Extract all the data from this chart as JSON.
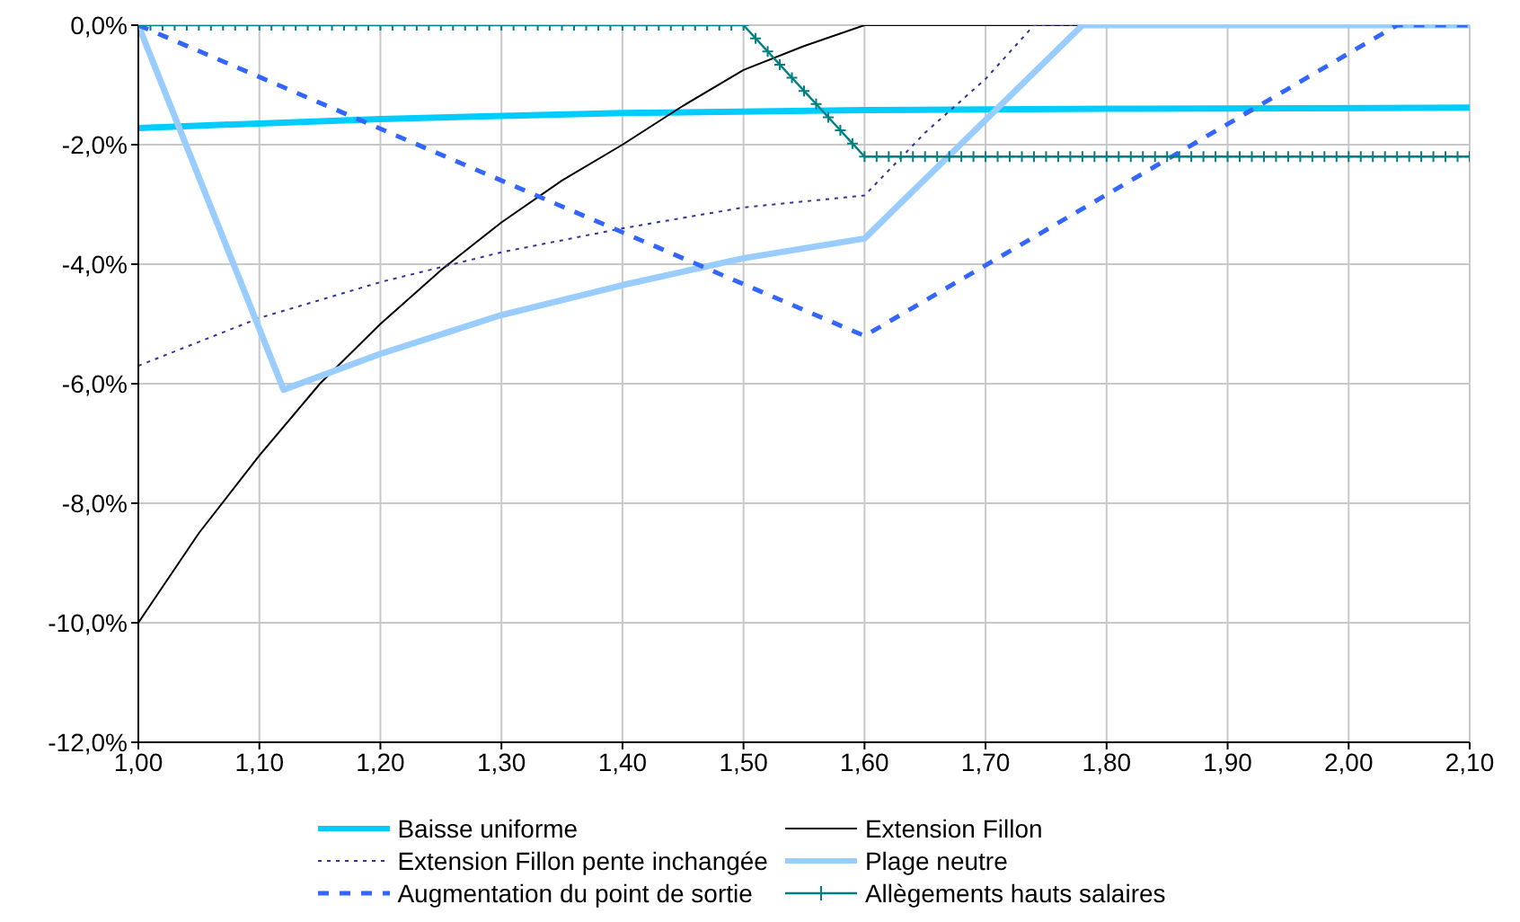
{
  "chart_data": {
    "type": "line",
    "grid": true,
    "legend": "bottom",
    "xlim": [
      1.0,
      2.1
    ],
    "xticks": [
      {
        "value": 1.0,
        "label": "1,00"
      },
      {
        "value": 1.1,
        "label": "1,10"
      },
      {
        "value": 1.2,
        "label": "1,20"
      },
      {
        "value": 1.3,
        "label": "1,30"
      },
      {
        "value": 1.4,
        "label": "1,40"
      },
      {
        "value": 1.5,
        "label": "1,50"
      },
      {
        "value": 1.6,
        "label": "1,60"
      },
      {
        "value": 1.7,
        "label": "1,70"
      },
      {
        "value": 1.8,
        "label": "1,80"
      },
      {
        "value": 1.9,
        "label": "1,90"
      },
      {
        "value": 2.0,
        "label": "2,00"
      },
      {
        "value": 2.1,
        "label": "2,10"
      }
    ],
    "ylim": [
      -12,
      0
    ],
    "yticks": [
      {
        "value": -12,
        "label": "-12,0%"
      },
      {
        "value": -10,
        "label": "-10,0%"
      },
      {
        "value": -8,
        "label": "-8,0%"
      },
      {
        "value": -6,
        "label": "-6,0%"
      },
      {
        "value": -4,
        "label": "-4,0%"
      },
      {
        "value": -2,
        "label": "-2,0%"
      },
      {
        "value": 0,
        "label": "0,0%"
      }
    ],
    "series": [
      {
        "name": "Baisse uniforme",
        "color": "#00ccff",
        "line_style": "solid",
        "marker": "none",
        "x": [
          1.0,
          1.2,
          1.4,
          1.6,
          1.8,
          2.1
        ],
        "values": [
          -1.72,
          -1.57,
          -1.47,
          -1.42,
          -1.4,
          -1.38
        ]
      },
      {
        "name": "Extension Fillon",
        "color": "#000000",
        "line_style": "solid",
        "marker": "none",
        "x": [
          1.0,
          1.05,
          1.1,
          1.15,
          1.2,
          1.25,
          1.3,
          1.35,
          1.4,
          1.45,
          1.5,
          1.55,
          1.6,
          2.1
        ],
        "values": [
          -10,
          -8.5,
          -7.2,
          -6.0,
          -5.0,
          -4.1,
          -3.3,
          -2.6,
          -2.0,
          -1.35,
          -0.75,
          -0.35,
          0,
          0
        ]
      },
      {
        "name": "Extension Fillon pente inchangée",
        "color": "#333399",
        "line_style": "dotted",
        "marker": "none",
        "x": [
          1.0,
          1.1,
          1.2,
          1.3,
          1.4,
          1.5,
          1.6,
          1.65,
          1.7,
          1.74,
          2.1
        ],
        "values": [
          -5.7,
          -4.9,
          -4.3,
          -3.8,
          -3.4,
          -3.05,
          -2.85,
          -1.8,
          -0.9,
          0,
          0
        ]
      },
      {
        "name": "Plage neutre",
        "color": "#99ccff",
        "line_style": "solid",
        "marker": "none",
        "x": [
          1.0,
          1.12,
          1.2,
          1.3,
          1.4,
          1.5,
          1.6,
          1.78,
          2.1
        ],
        "values": [
          0,
          -6.1,
          -5.5,
          -4.85,
          -4.35,
          -3.9,
          -3.57,
          0,
          0
        ]
      },
      {
        "name": "Augmentation du point de sortie",
        "color": "#3366ff",
        "line_style": "dashed",
        "marker": "none",
        "x": [
          1.0,
          1.6,
          2.04,
          2.1
        ],
        "values": [
          0,
          -5.2,
          0,
          0
        ]
      },
      {
        "name": "Allègements hauts salaires",
        "color": "#008080",
        "line_style": "solid",
        "marker": "cross",
        "x": [
          1.0,
          1.01,
          1.02,
          1.03,
          1.04,
          1.05,
          1.06,
          1.07,
          1.08,
          1.09,
          1.1,
          1.11,
          1.12,
          1.13,
          1.14,
          1.15,
          1.16,
          1.17,
          1.18,
          1.19,
          1.2,
          1.21,
          1.22,
          1.23,
          1.24,
          1.25,
          1.26,
          1.27,
          1.28,
          1.29,
          1.3,
          1.31,
          1.32,
          1.33,
          1.34,
          1.35,
          1.36,
          1.37,
          1.38,
          1.39,
          1.4,
          1.41,
          1.42,
          1.43,
          1.44,
          1.45,
          1.46,
          1.47,
          1.48,
          1.49,
          1.5,
          1.51,
          1.52,
          1.53,
          1.54,
          1.55,
          1.56,
          1.57,
          1.58,
          1.59,
          1.6,
          1.61,
          1.62,
          1.63,
          1.64,
          1.65,
          1.66,
          1.67,
          1.68,
          1.69,
          1.7,
          1.71,
          1.72,
          1.73,
          1.74,
          1.75,
          1.76,
          1.77,
          1.78,
          1.79,
          1.8,
          1.81,
          1.82,
          1.83,
          1.84,
          1.85,
          1.86,
          1.87,
          1.88,
          1.89,
          1.9,
          1.91,
          1.92,
          1.93,
          1.94,
          1.95,
          1.96,
          1.97,
          1.98,
          1.99,
          2.0,
          2.01,
          2.02,
          2.03,
          2.04,
          2.05,
          2.06,
          2.07,
          2.08,
          2.09,
          2.1
        ],
        "values": [
          0,
          0,
          0,
          0,
          0,
          0,
          0,
          0,
          0,
          0,
          0,
          0,
          0,
          0,
          0,
          0,
          0,
          0,
          0,
          0,
          0,
          0,
          0,
          0,
          0,
          0,
          0,
          0,
          0,
          0,
          0,
          0,
          0,
          0,
          0,
          0,
          0,
          0,
          0,
          0,
          0,
          0,
          0,
          0,
          0,
          0,
          0,
          0,
          0,
          0,
          0,
          -0.22,
          -0.44,
          -0.66,
          -0.88,
          -1.1,
          -1.32,
          -1.54,
          -1.76,
          -1.98,
          -2.2,
          -2.2,
          -2.2,
          -2.2,
          -2.2,
          -2.2,
          -2.2,
          -2.2,
          -2.2,
          -2.2,
          -2.2,
          -2.2,
          -2.2,
          -2.2,
          -2.2,
          -2.2,
          -2.2,
          -2.2,
          -2.2,
          -2.2,
          -2.2,
          -2.2,
          -2.2,
          -2.2,
          -2.2,
          -2.2,
          -2.2,
          -2.2,
          -2.2,
          -2.2,
          -2.2,
          -2.2,
          -2.2,
          -2.2,
          -2.2,
          -2.2,
          -2.2,
          -2.2,
          -2.2,
          -2.2,
          -2.2,
          -2.2,
          -2.2,
          -2.2,
          -2.2,
          -2.2,
          -2.2,
          -2.2,
          -2.2,
          -2.2,
          -2.2
        ]
      }
    ]
  }
}
